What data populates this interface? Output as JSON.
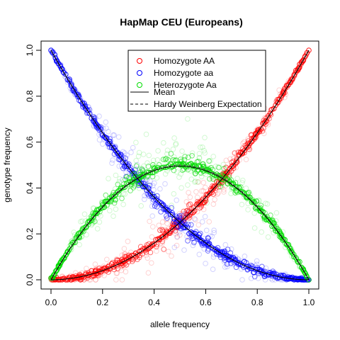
{
  "chart_data": {
    "type": "scatter",
    "title": "HapMap CEU (Europeans)",
    "xlabel": "allele frequency",
    "ylabel": "genotype frequency",
    "xlim": [
      0,
      1
    ],
    "ylim": [
      0,
      1
    ],
    "x_ticks": [
      "0.0",
      "0.2",
      "0.4",
      "0.6",
      "0.8",
      "1.0"
    ],
    "y_ticks": [
      "0.0",
      "0.2",
      "0.4",
      "0.6",
      "0.8",
      "1.0"
    ],
    "grid": false,
    "legend_position": "top-center",
    "series": [
      {
        "name": "Homozygote AA",
        "color": "#ff0000",
        "marker": "circle",
        "model": "p^2",
        "x_range": [
          0,
          1
        ],
        "spread": 0.05
      },
      {
        "name": "Homozygote aa",
        "color": "#0000ff",
        "marker": "circle",
        "model": "(1-p)^2",
        "x_range": [
          0,
          1
        ],
        "spread": 0.05
      },
      {
        "name": "Heterozygote Aa",
        "color": "#00dd00",
        "marker": "circle",
        "model": "2p(1-p)",
        "x_range": [
          0,
          1
        ],
        "spread": 0.07
      }
    ],
    "lines": [
      {
        "name": "Mean",
        "style": "solid",
        "color": "#000000"
      },
      {
        "name": "Hardy Weinberg Expectation",
        "style": "dashed",
        "color": "#000000"
      }
    ]
  }
}
